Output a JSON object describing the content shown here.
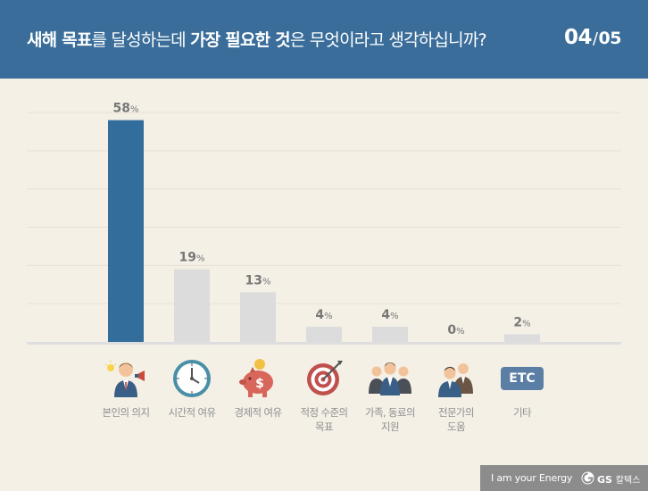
{
  "header": {
    "title_parts": [
      {
        "text": "새해 목표",
        "bold": true
      },
      {
        "text": "를 달성하는데 ",
        "bold": false
      },
      {
        "text": "가장 필요한 것",
        "bold": true
      },
      {
        "text": "은 무엇이라고 생각하십니까?",
        "bold": false
      }
    ],
    "page_current": "04",
    "page_separator": "/",
    "page_total": "05"
  },
  "colors": {
    "header_bg": "#3a6d9a",
    "highlight_bar": "#336d9c",
    "normal_bar": "#dcdcdc",
    "value_label": "#777777",
    "background": "#f4f0e6"
  },
  "chart_data": {
    "type": "bar",
    "categories": [
      "본인의 의지",
      "시간적 여유",
      "경제적 여유",
      "적정 수준의 목표",
      "가족, 동료의 지원",
      "전문가의 도움",
      "기타"
    ],
    "category_lines": [
      [
        "본인의 의지"
      ],
      [
        "시간적 여유"
      ],
      [
        "경제적 여유"
      ],
      [
        "적정 수준의",
        "목표"
      ],
      [
        "가족, 동료의",
        "지원"
      ],
      [
        "전문가의",
        "도움"
      ],
      [
        "기타"
      ]
    ],
    "values": [
      58,
      19,
      13,
      4,
      4,
      0,
      2
    ],
    "value_labels": [
      "58",
      "19",
      "13",
      "4",
      "4",
      "0",
      "2"
    ],
    "unit": "%",
    "highlight_index": 0,
    "icons": [
      "person-idea-icon",
      "clock-icon",
      "piggy-bank-icon",
      "target-icon",
      "group-icon",
      "experts-icon",
      "etc-icon"
    ],
    "etc_icon_text": "ETC",
    "ylim": [
      0,
      60
    ],
    "grid": true
  },
  "footer": {
    "slogan": "I am your Energy",
    "brand": "GS",
    "brand_sub": "칼텍스"
  }
}
